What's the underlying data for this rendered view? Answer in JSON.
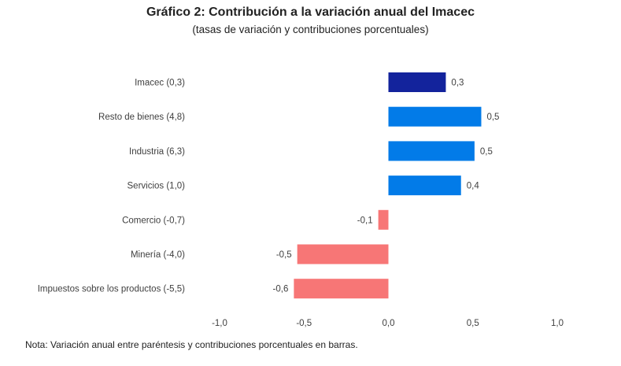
{
  "chart_data": {
    "type": "bar",
    "orientation": "horizontal",
    "title": "Gráfico 2: Contribución a la variación anual del Imacec",
    "subtitle": "(tasas de variación y contribuciones porcentuales)",
    "categories": [
      "Imacec (0,3)",
      "Resto de bienes (4,8)",
      "Industria (6,3)",
      "Servicios (1,0)",
      "Comercio (-0,7)",
      "Minería (-4,0)",
      "Impuestos sobre los productos (-5,5)"
    ],
    "values": [
      0.34,
      0.55,
      0.51,
      0.43,
      -0.06,
      -0.54,
      -0.56
    ],
    "data_labels": [
      "0,3",
      "0,5",
      "0,5",
      "0,4",
      "-0,1",
      "-0,5",
      "-0,6"
    ],
    "colors": [
      "#13239c",
      "#027be8",
      "#027be8",
      "#027be8",
      "#f77676",
      "#f77676",
      "#f77676"
    ],
    "xlim": [
      -1.0,
      1.0
    ],
    "x_ticks": [
      -1.0,
      -0.5,
      0.0,
      0.5,
      1.0
    ],
    "x_tick_labels": [
      "-1,0",
      "-0,5",
      "0,0",
      "0,5",
      "1,0"
    ],
    "grid": false,
    "xlabel": "",
    "ylabel": ""
  },
  "note": "Nota: Variación anual entre paréntesis y contribuciones porcentuales en barras."
}
